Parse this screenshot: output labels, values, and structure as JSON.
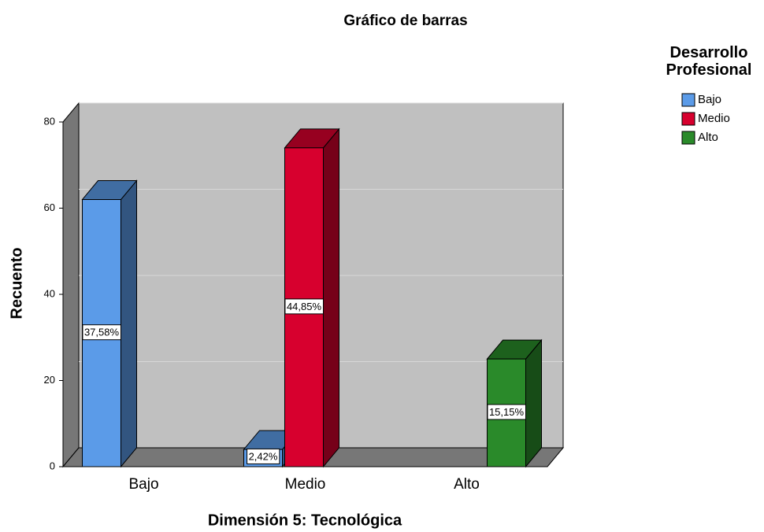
{
  "chart_data": {
    "type": "bar3d",
    "title": "Gráfico de barras",
    "x_label": "Dimensión 5: Tecnológica",
    "y_label": "Recuento",
    "legend_title": "Desarrollo Profesional",
    "categories": [
      "Bajo",
      "Medio",
      "Alto"
    ],
    "series": [
      {
        "name": "Bajo",
        "color": "#5b9be8",
        "values": [
          62,
          4,
          null
        ],
        "value_labels": [
          "37,58%",
          "2,42%",
          null
        ]
      },
      {
        "name": "Medio",
        "color": "#d7002e",
        "values": [
          null,
          74,
          null
        ],
        "value_labels": [
          null,
          "44,85%",
          null
        ]
      },
      {
        "name": "Alto",
        "color": "#2a8a2a",
        "values": [
          null,
          null,
          25
        ],
        "value_labels": [
          null,
          null,
          "15,15%"
        ]
      }
    ],
    "ylim": [
      0,
      80
    ],
    "yticks": [
      0,
      20,
      40,
      60,
      80
    ],
    "grid": true
  }
}
